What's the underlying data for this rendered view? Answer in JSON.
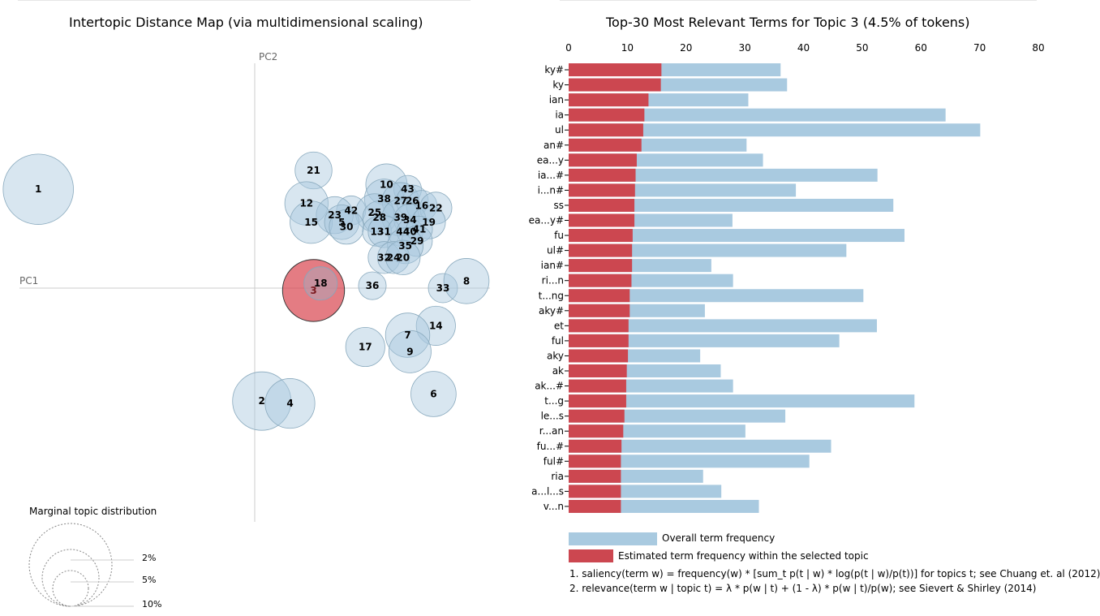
{
  "left_title": "Intertopic Distance Map (via multidimensional scaling)",
  "right_title": "Top-30 Most Relevant Terms for Topic 3 (4.5% of tokens)",
  "colors": {
    "bubble": "#a8c8de",
    "bubble_selected": "#d9454f",
    "bar_overall": "#a9cae0",
    "bar_topic": "#cc4750"
  },
  "chart_data": [
    {
      "type": "scatter",
      "title": "Intertopic Distance Map (via multidimensional scaling)",
      "xlabel": "PC1",
      "ylabel": "PC2",
      "xlim": [
        -1,
        1
      ],
      "ylim": [
        -1,
        1
      ],
      "selected_topic": "3",
      "topics": [
        {
          "label": "1",
          "x": -0.92,
          "y": 0.42,
          "size": 5.8
        },
        {
          "label": "21",
          "x": 0.25,
          "y": 0.5,
          "size": 1.6
        },
        {
          "label": "10",
          "x": 0.56,
          "y": 0.44,
          "size": 2.0
        },
        {
          "label": "43",
          "x": 0.65,
          "y": 0.42,
          "size": 0.9
        },
        {
          "label": "12",
          "x": 0.22,
          "y": 0.36,
          "size": 2.2
        },
        {
          "label": "38",
          "x": 0.55,
          "y": 0.38,
          "size": 1.8
        },
        {
          "label": "27",
          "x": 0.62,
          "y": 0.37,
          "size": 1.6
        },
        {
          "label": "26",
          "x": 0.67,
          "y": 0.37,
          "size": 1.2
        },
        {
          "label": "16",
          "x": 0.71,
          "y": 0.35,
          "size": 1.1
        },
        {
          "label": "22",
          "x": 0.77,
          "y": 0.34,
          "size": 1.2
        },
        {
          "label": "42",
          "x": 0.41,
          "y": 0.33,
          "size": 1.0
        },
        {
          "label": "25",
          "x": 0.51,
          "y": 0.32,
          "size": 1.7
        },
        {
          "label": "23",
          "x": 0.34,
          "y": 0.31,
          "size": 1.6
        },
        {
          "label": "28",
          "x": 0.53,
          "y": 0.3,
          "size": 1.3
        },
        {
          "label": "39",
          "x": 0.62,
          "y": 0.3,
          "size": 1.6
        },
        {
          "label": "34",
          "x": 0.66,
          "y": 0.29,
          "size": 1.2
        },
        {
          "label": "19",
          "x": 0.74,
          "y": 0.28,
          "size": 1.3
        },
        {
          "label": "15",
          "x": 0.24,
          "y": 0.28,
          "size": 2.1
        },
        {
          "label": "5",
          "x": 0.37,
          "y": 0.28,
          "size": 1.4
        },
        {
          "label": "30",
          "x": 0.39,
          "y": 0.26,
          "size": 1.4
        },
        {
          "label": "13",
          "x": 0.52,
          "y": 0.24,
          "size": 1.0
        },
        {
          "label": "31",
          "x": 0.55,
          "y": 0.24,
          "size": 1.2
        },
        {
          "label": "44",
          "x": 0.63,
          "y": 0.24,
          "size": 1.1
        },
        {
          "label": "40",
          "x": 0.66,
          "y": 0.24,
          "size": 0.8
        },
        {
          "label": "41",
          "x": 0.7,
          "y": 0.25,
          "size": 0.8
        },
        {
          "label": "29",
          "x": 0.69,
          "y": 0.2,
          "size": 1.1
        },
        {
          "label": "35",
          "x": 0.64,
          "y": 0.18,
          "size": 1.5
        },
        {
          "label": "32",
          "x": 0.55,
          "y": 0.13,
          "size": 1.2
        },
        {
          "label": "24",
          "x": 0.59,
          "y": 0.13,
          "size": 1.2
        },
        {
          "label": "20",
          "x": 0.63,
          "y": 0.13,
          "size": 1.4
        },
        {
          "label": "18",
          "x": 0.28,
          "y": 0.02,
          "size": 1.3
        },
        {
          "label": "3",
          "x": 0.25,
          "y": -0.01,
          "size": 4.5
        },
        {
          "label": "36",
          "x": 0.5,
          "y": 0.01,
          "size": 0.9
        },
        {
          "label": "33",
          "x": 0.8,
          "y": 0.0,
          "size": 1.0
        },
        {
          "label": "8",
          "x": 0.9,
          "y": 0.03,
          "size": 2.4
        },
        {
          "label": "14",
          "x": 0.77,
          "y": -0.16,
          "size": 1.8
        },
        {
          "label": "7",
          "x": 0.65,
          "y": -0.2,
          "size": 2.3
        },
        {
          "label": "9",
          "x": 0.66,
          "y": -0.27,
          "size": 2.1
        },
        {
          "label": "17",
          "x": 0.47,
          "y": -0.25,
          "size": 1.8
        },
        {
          "label": "6",
          "x": 0.76,
          "y": -0.45,
          "size": 2.4
        },
        {
          "label": "2",
          "x": 0.03,
          "y": -0.48,
          "size": 4.0
        },
        {
          "label": "4",
          "x": 0.15,
          "y": -0.49,
          "size": 2.9
        }
      ]
    },
    {
      "type": "bar",
      "title": "Top-30 Most Relevant Terms for Topic 3 (4.5% of tokens)",
      "xlim": [
        0,
        80
      ],
      "xticks": [
        "0",
        "10",
        "20",
        "30",
        "40",
        "50",
        "60",
        "70",
        "80"
      ],
      "categories": [
        "ky#",
        "ky",
        "ian",
        "ia",
        "ul",
        "an#",
        "ea...y",
        "ia...#",
        "i...n#",
        "ss",
        "ea...y#",
        "fu",
        "ul#",
        "ian#",
        "ri...n",
        "t...ng",
        "aky#",
        "et",
        "ful",
        "aky",
        "ak",
        "ak...#",
        "t...g",
        "le...s",
        "r...an",
        "fu...#",
        "ful#",
        "ria",
        "a...l...s",
        "v...n"
      ],
      "series": [
        {
          "name": "Overall term frequency",
          "values": [
            36.1,
            37.2,
            30.6,
            64.2,
            70.1,
            30.3,
            33.1,
            52.6,
            38.7,
            55.3,
            27.9,
            57.2,
            47.3,
            24.3,
            28.0,
            50.2,
            23.2,
            52.5,
            46.1,
            22.4,
            25.9,
            28.0,
            58.9,
            36.9,
            30.1,
            44.7,
            41.0,
            22.9,
            26.0,
            32.4
          ]
        },
        {
          "name": "Estimated term frequency within the selected topic",
          "values": [
            15.8,
            15.7,
            13.6,
            12.9,
            12.7,
            12.4,
            11.6,
            11.4,
            11.3,
            11.2,
            11.2,
            10.9,
            10.8,
            10.8,
            10.7,
            10.4,
            10.4,
            10.2,
            10.2,
            10.1,
            9.9,
            9.8,
            9.8,
            9.5,
            9.3,
            9.0,
            8.9,
            8.9,
            8.9,
            8.9
          ]
        }
      ]
    }
  ],
  "legend": {
    "overall": "Overall term frequency",
    "topic": "Estimated term frequency within the selected topic"
  },
  "marginal": {
    "title": "Marginal topic distribution",
    "labels": [
      "2%",
      "5%",
      "10%"
    ]
  },
  "notes": [
    "1. saliency(term w) = frequency(w) * [sum_t p(t | w) * log(p(t | w)/p(t))] for topics t; see Chuang et. al (2012)",
    "2. relevance(term w | topic t) = λ * p(w | t) + (1 - λ) * p(w | t)/p(w); see Sievert & Shirley (2014)"
  ]
}
